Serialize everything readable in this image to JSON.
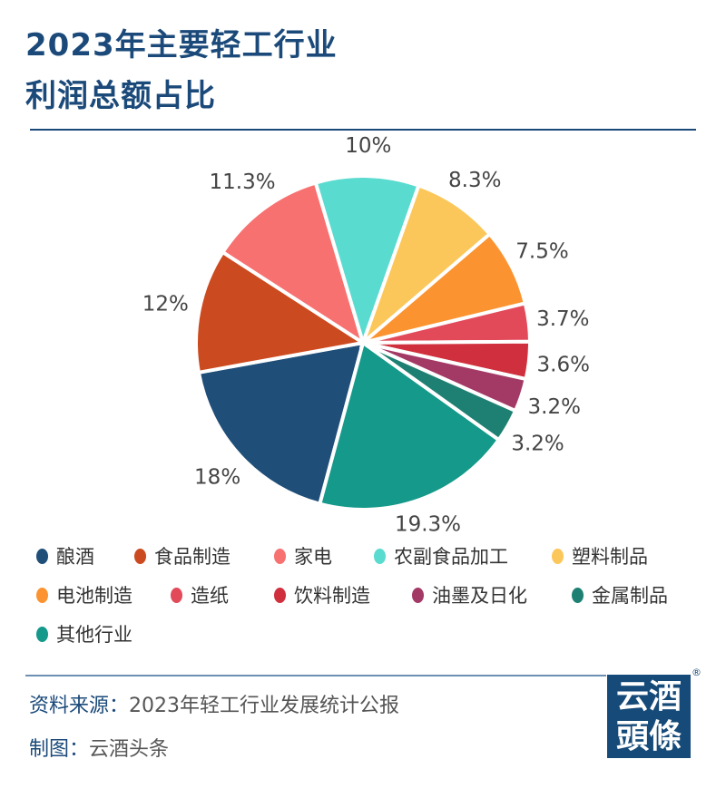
{
  "chart_data": {
    "type": "pie",
    "title_line1": "2023年主要轻工行业",
    "title_line2": "利润总额占比",
    "categories": [
      "酿酒",
      "食品制造",
      "家电",
      "农副食品加工",
      "塑料制品",
      "电池制造",
      "造纸",
      "饮料制造",
      "油墨及日化",
      "金属制品",
      "其他行业"
    ],
    "values": [
      18,
      12,
      11.3,
      10,
      8.3,
      7.5,
      3.7,
      3.6,
      3.2,
      3.2,
      19.3
    ],
    "labels": [
      "18%",
      "12%",
      "11.3%",
      "10%",
      "8.3%",
      "7.5%",
      "3.7%",
      "3.6%",
      "3.2%",
      "3.2%",
      "19.3%"
    ],
    "colors": [
      "#1f4e79",
      "#cc4a1f",
      "#f87171",
      "#5adbd0",
      "#fcc75a",
      "#fb9430",
      "#e24a5a",
      "#d0303d",
      "#a33a66",
      "#1e8073",
      "#14998a"
    ],
    "legend_position": "bottom"
  },
  "footer": {
    "source_key": "资料来源：",
    "source_value": "2023年轻工行业发展统计公报",
    "maker_key": "制图：",
    "maker_value": "云酒头条"
  },
  "logo": {
    "line1": "云酒",
    "line2": "頭條",
    "mark": "®"
  }
}
